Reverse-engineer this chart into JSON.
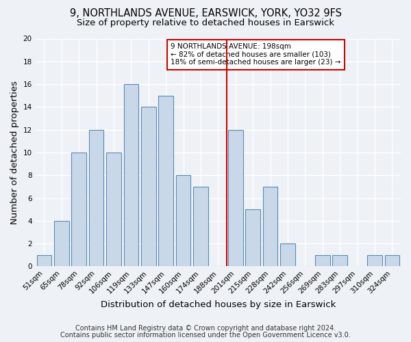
{
  "title1": "9, NORTHLANDS AVENUE, EARSWICK, YORK, YO32 9FS",
  "title2": "Size of property relative to detached houses in Earswick",
  "xlabel": "Distribution of detached houses by size in Earswick",
  "ylabel": "Number of detached properties",
  "categories": [
    "51sqm",
    "65sqm",
    "78sqm",
    "92sqm",
    "106sqm",
    "119sqm",
    "133sqm",
    "147sqm",
    "160sqm",
    "174sqm",
    "188sqm",
    "201sqm",
    "215sqm",
    "228sqm",
    "242sqm",
    "256sqm",
    "269sqm",
    "283sqm",
    "297sqm",
    "310sqm",
    "324sqm"
  ],
  "values": [
    1,
    4,
    10,
    12,
    10,
    16,
    14,
    15,
    8,
    7,
    0,
    12,
    5,
    7,
    2,
    0,
    1,
    1,
    0,
    1,
    1
  ],
  "bar_color": "#c8d8e8",
  "bar_edge_color": "#5a8ab5",
  "vline_x": 10.5,
  "vline_color": "#cc0000",
  "ylim": [
    0,
    20
  ],
  "yticks": [
    0,
    2,
    4,
    6,
    8,
    10,
    12,
    14,
    16,
    18,
    20
  ],
  "legend_title": "9 NORTHLANDS AVENUE: 198sqm",
  "legend_line1": "← 82% of detached houses are smaller (103)",
  "legend_line2": "18% of semi-detached houses are larger (23) →",
  "legend_box_color": "#cc0000",
  "footnote1": "Contains HM Land Registry data © Crown copyright and database right 2024.",
  "footnote2": "Contains public sector information licensed under the Open Government Licence v3.0.",
  "background_color": "#eef2f6",
  "grid_color": "#ffffff",
  "title_fontsize": 10.5,
  "subtitle_fontsize": 9.5,
  "axis_label_fontsize": 9.5,
  "tick_fontsize": 7.5,
  "footnote_fontsize": 7.0,
  "annotation_fontsize": 7.5
}
